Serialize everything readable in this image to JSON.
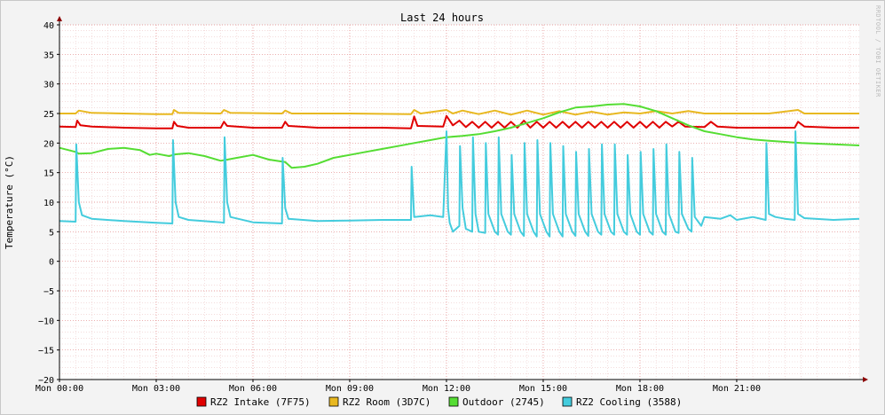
{
  "chart_data": {
    "type": "line",
    "title": "Last 24 hours",
    "ylabel": "Temperature (°C)",
    "watermark": "RRDTOOL / TOBI OETIKER",
    "ylim": [
      -20,
      40
    ],
    "xlim": [
      0,
      24.8
    ],
    "y_ticks": [
      40,
      35,
      30,
      25,
      20,
      15,
      10,
      5,
      0,
      -5,
      -10,
      -15,
      -20
    ],
    "y_tick_labels": [
      "40",
      "35",
      "30",
      "25",
      "20",
      "15",
      "10",
      "5",
      "0",
      "−5",
      "−10",
      "−15",
      "−20"
    ],
    "x_ticks": [
      0,
      3,
      6,
      9,
      12,
      15,
      18,
      21
    ],
    "x_tick_labels": [
      "Mon 00:00",
      "Mon 03:00",
      "Mon 06:00",
      "Mon 09:00",
      "Mon 12:00",
      "Mon 15:00",
      "Mon 18:00",
      "Mon 21:00"
    ],
    "grid": true,
    "legend_position": "bottom",
    "series": [
      {
        "name": "RZ2 Intake (7F75)",
        "color": "#e00000",
        "points": [
          [
            0,
            22.8
          ],
          [
            0.5,
            22.7
          ],
          [
            0.55,
            23.8
          ],
          [
            0.65,
            23.0
          ],
          [
            1,
            22.8
          ],
          [
            2,
            22.6
          ],
          [
            3,
            22.5
          ],
          [
            3.5,
            22.5
          ],
          [
            3.55,
            23.6
          ],
          [
            3.65,
            22.9
          ],
          [
            4,
            22.6
          ],
          [
            5,
            22.6
          ],
          [
            5.1,
            23.6
          ],
          [
            5.2,
            22.9
          ],
          [
            6,
            22.6
          ],
          [
            6.9,
            22.6
          ],
          [
            7,
            23.6
          ],
          [
            7.1,
            22.9
          ],
          [
            8,
            22.6
          ],
          [
            9,
            22.6
          ],
          [
            10,
            22.6
          ],
          [
            10.9,
            22.5
          ],
          [
            11,
            24.5
          ],
          [
            11.1,
            22.9
          ],
          [
            11.9,
            22.8
          ],
          [
            12,
            24.6
          ],
          [
            12.2,
            23.0
          ],
          [
            12.4,
            23.8
          ],
          [
            12.6,
            22.7
          ],
          [
            12.8,
            23.6
          ],
          [
            13,
            22.6
          ],
          [
            13.2,
            23.6
          ],
          [
            13.4,
            22.6
          ],
          [
            13.6,
            23.6
          ],
          [
            13.8,
            22.6
          ],
          [
            14,
            23.6
          ],
          [
            14.2,
            22.6
          ],
          [
            14.4,
            23.8
          ],
          [
            14.6,
            22.6
          ],
          [
            14.8,
            23.6
          ],
          [
            15,
            22.6
          ],
          [
            15.2,
            23.6
          ],
          [
            15.4,
            22.6
          ],
          [
            15.6,
            23.6
          ],
          [
            15.8,
            22.6
          ],
          [
            16,
            23.6
          ],
          [
            16.2,
            22.6
          ],
          [
            16.4,
            23.6
          ],
          [
            16.6,
            22.6
          ],
          [
            16.8,
            23.6
          ],
          [
            17,
            22.6
          ],
          [
            17.2,
            23.6
          ],
          [
            17.4,
            22.6
          ],
          [
            17.6,
            23.6
          ],
          [
            17.8,
            22.6
          ],
          [
            18,
            23.6
          ],
          [
            18.2,
            22.6
          ],
          [
            18.4,
            23.6
          ],
          [
            18.6,
            22.6
          ],
          [
            18.8,
            23.6
          ],
          [
            19,
            22.8
          ],
          [
            19.2,
            23.6
          ],
          [
            19.4,
            22.8
          ],
          [
            20,
            22.7
          ],
          [
            20.2,
            23.6
          ],
          [
            20.4,
            22.8
          ],
          [
            21,
            22.6
          ],
          [
            22,
            22.6
          ],
          [
            22.8,
            22.6
          ],
          [
            22.9,
            23.6
          ],
          [
            23.1,
            22.8
          ],
          [
            24,
            22.6
          ],
          [
            24.8,
            22.6
          ]
        ]
      },
      {
        "name": "RZ2 Room (3D7C)",
        "color": "#e8b820",
        "points": [
          [
            0,
            25.0
          ],
          [
            0.5,
            25.0
          ],
          [
            0.6,
            25.5
          ],
          [
            1,
            25.1
          ],
          [
            2,
            25.0
          ],
          [
            3,
            24.9
          ],
          [
            3.5,
            24.9
          ],
          [
            3.55,
            25.6
          ],
          [
            3.7,
            25.1
          ],
          [
            5,
            25.0
          ],
          [
            5.1,
            25.6
          ],
          [
            5.3,
            25.1
          ],
          [
            6.9,
            25.0
          ],
          [
            7,
            25.5
          ],
          [
            7.2,
            25.0
          ],
          [
            9,
            25.0
          ],
          [
            10.9,
            24.9
          ],
          [
            11,
            25.6
          ],
          [
            11.2,
            25.0
          ],
          [
            12,
            25.6
          ],
          [
            12.2,
            25.0
          ],
          [
            12.5,
            25.5
          ],
          [
            13,
            24.9
          ],
          [
            13.5,
            25.5
          ],
          [
            14,
            24.8
          ],
          [
            14.5,
            25.5
          ],
          [
            15,
            24.8
          ],
          [
            15.5,
            25.4
          ],
          [
            16,
            24.8
          ],
          [
            16.5,
            25.3
          ],
          [
            17,
            24.8
          ],
          [
            17.5,
            25.2
          ],
          [
            18,
            25.0
          ],
          [
            18.5,
            25.4
          ],
          [
            19,
            25.0
          ],
          [
            19.5,
            25.4
          ],
          [
            20,
            25.0
          ],
          [
            21,
            25.0
          ],
          [
            22,
            25.0
          ],
          [
            22.9,
            25.6
          ],
          [
            23.1,
            25.0
          ],
          [
            24,
            25.0
          ],
          [
            24.8,
            25.0
          ]
        ]
      },
      {
        "name": "Outdoor (2745)",
        "color": "#55dd33",
        "points": [
          [
            0,
            19.2
          ],
          [
            0.5,
            18.5
          ],
          [
            0.6,
            18.2
          ],
          [
            1,
            18.3
          ],
          [
            1.5,
            19.0
          ],
          [
            2,
            19.2
          ],
          [
            2.5,
            18.8
          ],
          [
            2.8,
            18.0
          ],
          [
            3,
            18.2
          ],
          [
            3.4,
            17.8
          ],
          [
            3.6,
            18.1
          ],
          [
            4,
            18.3
          ],
          [
            4.5,
            17.8
          ],
          [
            5,
            17.0
          ],
          [
            5.5,
            17.5
          ],
          [
            6,
            18.0
          ],
          [
            6.5,
            17.2
          ],
          [
            7,
            16.8
          ],
          [
            7.2,
            15.8
          ],
          [
            7.6,
            16.0
          ],
          [
            8,
            16.5
          ],
          [
            8.5,
            17.5
          ],
          [
            9,
            18.0
          ],
          [
            9.5,
            18.5
          ],
          [
            10,
            19.0
          ],
          [
            10.5,
            19.5
          ],
          [
            11,
            20.0
          ],
          [
            11.5,
            20.5
          ],
          [
            12,
            21.0
          ],
          [
            12.5,
            21.2
          ],
          [
            13,
            21.5
          ],
          [
            13.5,
            22.0
          ],
          [
            14,
            22.6
          ],
          [
            14.5,
            23.4
          ],
          [
            15,
            24.2
          ],
          [
            15.5,
            25.2
          ],
          [
            16,
            26.0
          ],
          [
            16.5,
            26.2
          ],
          [
            17,
            26.5
          ],
          [
            17.5,
            26.6
          ],
          [
            18,
            26.2
          ],
          [
            18.5,
            25.4
          ],
          [
            19,
            24.2
          ],
          [
            19.5,
            23.0
          ],
          [
            20,
            22.0
          ],
          [
            20.5,
            21.5
          ],
          [
            21,
            21.0
          ],
          [
            21.5,
            20.6
          ],
          [
            22,
            20.4
          ],
          [
            23,
            20.0
          ],
          [
            24,
            19.8
          ],
          [
            24.8,
            19.6
          ]
        ]
      },
      {
        "name": "RZ2 Cooling (3588)",
        "color": "#44ccdd",
        "points": [
          [
            0,
            6.8
          ],
          [
            0.5,
            6.7
          ],
          [
            0.52,
            19.8
          ],
          [
            0.6,
            10.0
          ],
          [
            0.7,
            7.8
          ],
          [
            1,
            7.2
          ],
          [
            2,
            6.8
          ],
          [
            3,
            6.5
          ],
          [
            3.5,
            6.4
          ],
          [
            3.52,
            20.5
          ],
          [
            3.6,
            10.0
          ],
          [
            3.7,
            7.5
          ],
          [
            4,
            7.0
          ],
          [
            5,
            6.6
          ],
          [
            5.1,
            6.5
          ],
          [
            5.12,
            21.0
          ],
          [
            5.2,
            10.0
          ],
          [
            5.3,
            7.5
          ],
          [
            6,
            6.6
          ],
          [
            6.9,
            6.4
          ],
          [
            6.92,
            17.5
          ],
          [
            7.0,
            9.0
          ],
          [
            7.1,
            7.2
          ],
          [
            8,
            6.8
          ],
          [
            9,
            6.9
          ],
          [
            10,
            7.0
          ],
          [
            10.9,
            7.0
          ],
          [
            10.92,
            16.0
          ],
          [
            11.0,
            7.5
          ],
          [
            11.5,
            7.8
          ],
          [
            11.9,
            7.5
          ],
          [
            12.0,
            22.0
          ],
          [
            12.05,
            9.0
          ],
          [
            12.1,
            6.5
          ],
          [
            12.2,
            5.0
          ],
          [
            12.4,
            6.0
          ],
          [
            12.42,
            19.5
          ],
          [
            12.5,
            9.0
          ],
          [
            12.6,
            5.5
          ],
          [
            12.8,
            5.0
          ],
          [
            12.82,
            21.0
          ],
          [
            12.9,
            8.0
          ],
          [
            13.0,
            5.0
          ],
          [
            13.2,
            4.8
          ],
          [
            13.22,
            20.0
          ],
          [
            13.3,
            8.0
          ],
          [
            13.5,
            5.0
          ],
          [
            13.6,
            4.5
          ],
          [
            13.62,
            21.0
          ],
          [
            13.7,
            8.0
          ],
          [
            13.9,
            5.0
          ],
          [
            14.0,
            4.5
          ],
          [
            14.02,
            18.0
          ],
          [
            14.1,
            8.0
          ],
          [
            14.3,
            5.0
          ],
          [
            14.4,
            4.3
          ],
          [
            14.42,
            20.0
          ],
          [
            14.5,
            8.0
          ],
          [
            14.7,
            5.0
          ],
          [
            14.8,
            4.2
          ],
          [
            14.82,
            20.5
          ],
          [
            14.9,
            8.0
          ],
          [
            15.1,
            5.0
          ],
          [
            15.2,
            4.2
          ],
          [
            15.22,
            20.0
          ],
          [
            15.3,
            8.0
          ],
          [
            15.5,
            5.0
          ],
          [
            15.6,
            4.2
          ],
          [
            15.62,
            19.5
          ],
          [
            15.7,
            8.0
          ],
          [
            15.9,
            5.0
          ],
          [
            16.0,
            4.3
          ],
          [
            16.02,
            18.5
          ],
          [
            16.1,
            8.0
          ],
          [
            16.3,
            5.0
          ],
          [
            16.4,
            4.3
          ],
          [
            16.42,
            19.0
          ],
          [
            16.5,
            8.0
          ],
          [
            16.7,
            5.0
          ],
          [
            16.8,
            4.5
          ],
          [
            16.82,
            19.8
          ],
          [
            16.9,
            8.0
          ],
          [
            17.1,
            5.0
          ],
          [
            17.2,
            4.5
          ],
          [
            17.22,
            19.8
          ],
          [
            17.3,
            8.0
          ],
          [
            17.5,
            5.0
          ],
          [
            17.6,
            4.5
          ],
          [
            17.62,
            18.0
          ],
          [
            17.7,
            8.0
          ],
          [
            17.9,
            5.0
          ],
          [
            18.0,
            4.5
          ],
          [
            18.02,
            18.5
          ],
          [
            18.1,
            8.0
          ],
          [
            18.3,
            5.0
          ],
          [
            18.4,
            4.5
          ],
          [
            18.42,
            19.0
          ],
          [
            18.5,
            8.0
          ],
          [
            18.7,
            5.0
          ],
          [
            18.8,
            4.5
          ],
          [
            18.82,
            19.8
          ],
          [
            18.9,
            8.0
          ],
          [
            19.1,
            5.0
          ],
          [
            19.2,
            4.8
          ],
          [
            19.22,
            18.5
          ],
          [
            19.3,
            8.0
          ],
          [
            19.5,
            5.5
          ],
          [
            19.6,
            5.0
          ],
          [
            19.62,
            17.5
          ],
          [
            19.7,
            7.5
          ],
          [
            19.9,
            6.0
          ],
          [
            20,
            7.5
          ],
          [
            20.5,
            7.2
          ],
          [
            20.8,
            7.8
          ],
          [
            21,
            7.0
          ],
          [
            21.5,
            7.5
          ],
          [
            21.9,
            7.0
          ],
          [
            21.92,
            20.0
          ],
          [
            22.0,
            8.0
          ],
          [
            22.2,
            7.5
          ],
          [
            22.5,
            7.2
          ],
          [
            22.8,
            7.0
          ],
          [
            22.82,
            22.0
          ],
          [
            22.9,
            8.0
          ],
          [
            23.1,
            7.3
          ],
          [
            24,
            7.0
          ],
          [
            24.8,
            7.2
          ]
        ]
      }
    ]
  }
}
